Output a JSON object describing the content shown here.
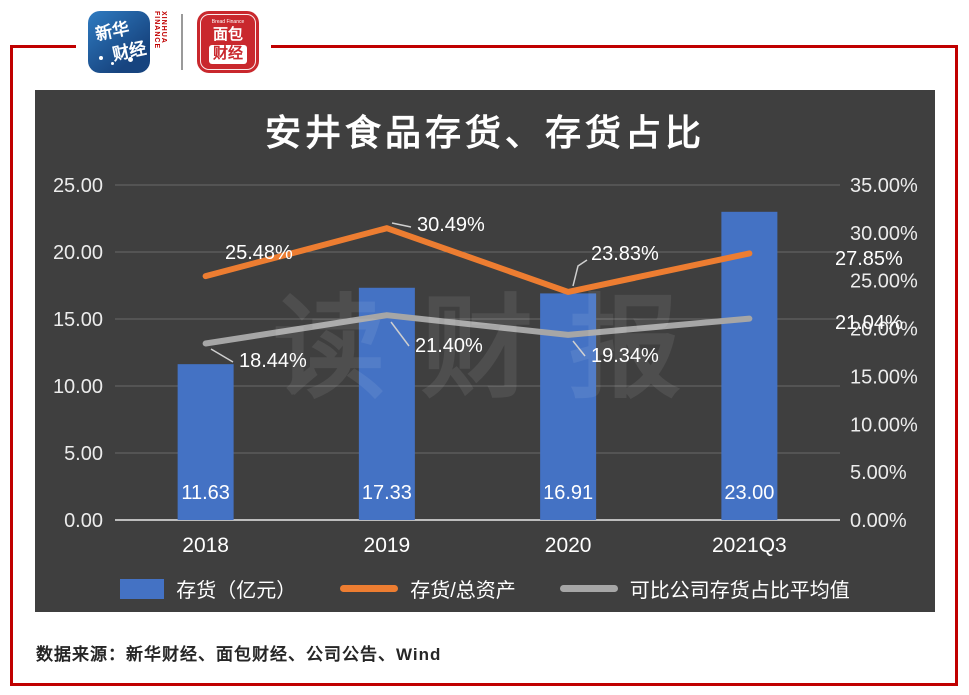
{
  "header": {
    "xinhua_logo": {
      "line1": "新华",
      "line2": "财经",
      "vertical_text": "XINHUA FINANCE"
    },
    "bread_logo": {
      "top": "Bread Finance",
      "line1": "面包",
      "line2": "财经"
    }
  },
  "theme": {
    "frame_color": "#c00000",
    "panel_bg": "#3f3f3f"
  },
  "chart_data": {
    "type": "bar+line",
    "title": "安井食品存货、存货占比",
    "categories": [
      "2018",
      "2019",
      "2020",
      "2021Q3"
    ],
    "bar_series": {
      "name": "存货（亿元）",
      "color": "#4472c4",
      "axis": "left",
      "values": [
        11.63,
        17.33,
        16.91,
        23.0
      ],
      "labels": [
        "11.63",
        "17.33",
        "16.91",
        "23.00"
      ]
    },
    "line_series": [
      {
        "name": "存货/总资产",
        "color": "#ed7d31",
        "axis": "right",
        "values": [
          25.48,
          30.49,
          23.83,
          27.85
        ],
        "labels": [
          "25.48%",
          "30.49%",
          "23.83%",
          "27.85%"
        ]
      },
      {
        "name": "可比公司存货占比平均值",
        "color": "#a6a6a6",
        "axis": "right",
        "values": [
          18.44,
          21.4,
          19.34,
          21.04
        ],
        "labels": [
          "18.44%",
          "21.40%",
          "19.34%",
          "21.04%"
        ]
      }
    ],
    "left_axis": {
      "min": 0,
      "max": 25,
      "ticks": [
        "0.00",
        "5.00",
        "10.00",
        "15.00",
        "20.00",
        "25.00"
      ]
    },
    "right_axis": {
      "min": 0,
      "max": 35,
      "ticks": [
        "0.00%",
        "5.00%",
        "10.00%",
        "15.00%",
        "20.00%",
        "25.00%",
        "30.00%",
        "35.00%"
      ]
    },
    "legend": [
      "存货（亿元）",
      "存货/总资产",
      "可比公司存货占比平均值"
    ],
    "legend_position": "bottom",
    "grid": true,
    "watermark": "读财报"
  },
  "footer": {
    "source": "数据来源：新华财经、面包财经、公司公告、Wind"
  }
}
